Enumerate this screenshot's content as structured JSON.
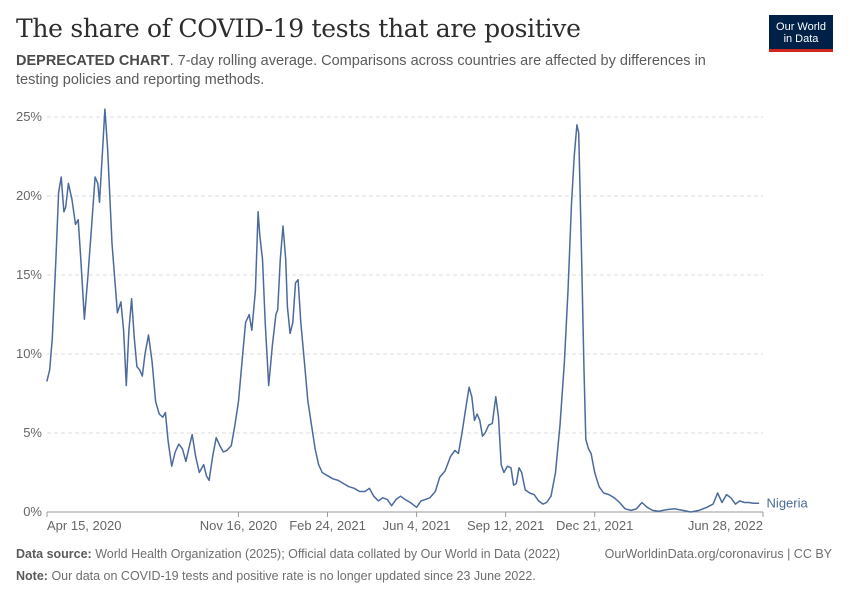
{
  "header": {
    "title": "The share of COVID-19 tests that are positive",
    "subtitle_bold": "DEPRECATED CHART",
    "subtitle_rest": ". 7-day rolling average. Comparisons across countries are affected by differences in testing policies and reporting methods.",
    "logo_line1": "Our World",
    "logo_line2": "in Data"
  },
  "footer": {
    "source_label": "Data source:",
    "source_text": "World Health Organization (2025); Official data collated by Our World in Data (2022)",
    "link_text": "OurWorldinData.org/coronavirus | CC BY",
    "note_label": "Note:",
    "note_text": "Our data on COVID-19 tests and positive rate is no longer updated since 23 June 2022."
  },
  "colors": {
    "series": "#4c6a9c",
    "grid": "#dddddd",
    "axis": "#999999",
    "text": "#666666"
  },
  "chart_data": {
    "type": "line",
    "title": "The share of COVID-19 tests that are positive",
    "xlabel": "",
    "ylabel": "",
    "x_range": [
      "2020-04-15",
      "2022-06-28"
    ],
    "ylim": [
      0,
      25
    ],
    "y_ticks": [
      0,
      5,
      10,
      15,
      20,
      25
    ],
    "y_tick_labels": [
      "0%",
      "5%",
      "10%",
      "15%",
      "20%",
      "25%"
    ],
    "x_ticks": [
      "2020-04-15",
      "2020-11-16",
      "2021-02-24",
      "2021-06-04",
      "2021-09-12",
      "2021-12-21",
      "2022-06-28"
    ],
    "x_tick_labels": [
      "Apr 15, 2020",
      "Nov 16, 2020",
      "Feb 24, 2021",
      "Jun 4, 2021",
      "Sep 12, 2021",
      "Dec 21, 2021",
      "Jun 28, 2022"
    ],
    "grid": true,
    "legend": "end-of-line label",
    "series": [
      {
        "name": "Nigeria",
        "points": [
          [
            "2020-04-15",
            8.3
          ],
          [
            "2020-04-18",
            9.0
          ],
          [
            "2020-04-21",
            11.0
          ],
          [
            "2020-04-25",
            16.0
          ],
          [
            "2020-04-28",
            20.2
          ],
          [
            "2020-05-01",
            21.2
          ],
          [
            "2020-05-04",
            19.0
          ],
          [
            "2020-05-06",
            19.3
          ],
          [
            "2020-05-09",
            20.8
          ],
          [
            "2020-05-13",
            19.8
          ],
          [
            "2020-05-17",
            18.2
          ],
          [
            "2020-05-20",
            18.5
          ],
          [
            "2020-05-23",
            16.0
          ],
          [
            "2020-05-27",
            12.2
          ],
          [
            "2020-05-31",
            15.0
          ],
          [
            "2020-06-04",
            18.0
          ],
          [
            "2020-06-08",
            21.2
          ],
          [
            "2020-06-11",
            20.8
          ],
          [
            "2020-06-13",
            19.6
          ],
          [
            "2020-06-16",
            22.5
          ],
          [
            "2020-06-19",
            25.5
          ],
          [
            "2020-06-22",
            23.0
          ],
          [
            "2020-06-27",
            17.0
          ],
          [
            "2020-07-03",
            12.6
          ],
          [
            "2020-07-07",
            13.3
          ],
          [
            "2020-07-10",
            11.5
          ],
          [
            "2020-07-13",
            8.0
          ],
          [
            "2020-07-16",
            11.5
          ],
          [
            "2020-07-19",
            13.5
          ],
          [
            "2020-07-22",
            11.0
          ],
          [
            "2020-07-25",
            9.2
          ],
          [
            "2020-07-28",
            9.0
          ],
          [
            "2020-07-31",
            8.6
          ],
          [
            "2020-08-03",
            10.0
          ],
          [
            "2020-08-07",
            11.2
          ],
          [
            "2020-08-11",
            9.5
          ],
          [
            "2020-08-15",
            7.0
          ],
          [
            "2020-08-19",
            6.2
          ],
          [
            "2020-08-23",
            6.0
          ],
          [
            "2020-08-26",
            6.3
          ],
          [
            "2020-08-29",
            4.5
          ],
          [
            "2020-09-02",
            2.9
          ],
          [
            "2020-09-06",
            3.8
          ],
          [
            "2020-09-10",
            4.3
          ],
          [
            "2020-09-14",
            4.0
          ],
          [
            "2020-09-18",
            3.2
          ],
          [
            "2020-09-22",
            4.2
          ],
          [
            "2020-09-25",
            4.9
          ],
          [
            "2020-09-29",
            3.5
          ],
          [
            "2020-10-03",
            2.5
          ],
          [
            "2020-10-08",
            3.0
          ],
          [
            "2020-10-11",
            2.3
          ],
          [
            "2020-10-14",
            2.0
          ],
          [
            "2020-10-18",
            3.5
          ],
          [
            "2020-10-22",
            4.7
          ],
          [
            "2020-10-26",
            4.2
          ],
          [
            "2020-10-30",
            3.8
          ],
          [
            "2020-11-03",
            3.9
          ],
          [
            "2020-11-08",
            4.2
          ],
          [
            "2020-11-12",
            5.5
          ],
          [
            "2020-11-16",
            7.0
          ],
          [
            "2020-11-20",
            9.5
          ],
          [
            "2020-11-24",
            12.0
          ],
          [
            "2020-11-28",
            12.5
          ],
          [
            "2020-12-01",
            11.5
          ],
          [
            "2020-12-05",
            14.0
          ],
          [
            "2020-12-08",
            19.0
          ],
          [
            "2020-12-10",
            17.5
          ],
          [
            "2020-12-13",
            16.0
          ],
          [
            "2020-12-16",
            12.0
          ],
          [
            "2020-12-20",
            8.0
          ],
          [
            "2020-12-24",
            10.5
          ],
          [
            "2020-12-28",
            12.5
          ],
          [
            "2020-12-30",
            12.8
          ],
          [
            "2021-01-02",
            16.0
          ],
          [
            "2021-01-05",
            18.1
          ],
          [
            "2021-01-08",
            16.0
          ],
          [
            "2021-01-10",
            13.0
          ],
          [
            "2021-01-13",
            11.3
          ],
          [
            "2021-01-16",
            12.0
          ],
          [
            "2021-01-19",
            14.5
          ],
          [
            "2021-01-22",
            14.7
          ],
          [
            "2021-01-25",
            12.0
          ],
          [
            "2021-01-29",
            9.5
          ],
          [
            "2021-02-02",
            7.0
          ],
          [
            "2021-02-06",
            5.5
          ],
          [
            "2021-02-10",
            4.0
          ],
          [
            "2021-02-14",
            3.0
          ],
          [
            "2021-02-18",
            2.5
          ],
          [
            "2021-02-24",
            2.3
          ],
          [
            "2021-03-02",
            2.1
          ],
          [
            "2021-03-08",
            2.0
          ],
          [
            "2021-03-14",
            1.8
          ],
          [
            "2021-03-20",
            1.6
          ],
          [
            "2021-03-26",
            1.5
          ],
          [
            "2021-04-01",
            1.3
          ],
          [
            "2021-04-07",
            1.3
          ],
          [
            "2021-04-12",
            1.5
          ],
          [
            "2021-04-17",
            1.0
          ],
          [
            "2021-04-22",
            0.7
          ],
          [
            "2021-04-27",
            0.9
          ],
          [
            "2021-05-02",
            0.8
          ],
          [
            "2021-05-07",
            0.4
          ],
          [
            "2021-05-12",
            0.8
          ],
          [
            "2021-05-17",
            1.0
          ],
          [
            "2021-05-22",
            0.8
          ],
          [
            "2021-05-28",
            0.6
          ],
          [
            "2021-06-04",
            0.3
          ],
          [
            "2021-06-09",
            0.7
          ],
          [
            "2021-06-14",
            0.8
          ],
          [
            "2021-06-19",
            0.9
          ],
          [
            "2021-06-25",
            1.3
          ],
          [
            "2021-06-30",
            2.2
          ],
          [
            "2021-07-06",
            2.6
          ],
          [
            "2021-07-12",
            3.5
          ],
          [
            "2021-07-17",
            3.9
          ],
          [
            "2021-07-21",
            3.7
          ],
          [
            "2021-07-25",
            5.0
          ],
          [
            "2021-07-29",
            6.5
          ],
          [
            "2021-08-02",
            7.9
          ],
          [
            "2021-08-05",
            7.3
          ],
          [
            "2021-08-08",
            5.8
          ],
          [
            "2021-08-11",
            6.2
          ],
          [
            "2021-08-14",
            5.8
          ],
          [
            "2021-08-17",
            4.8
          ],
          [
            "2021-08-20",
            5.0
          ],
          [
            "2021-08-24",
            5.5
          ],
          [
            "2021-08-28",
            5.6
          ],
          [
            "2021-09-01",
            7.3
          ],
          [
            "2021-09-04",
            6.0
          ],
          [
            "2021-09-07",
            3.0
          ],
          [
            "2021-09-10",
            2.5
          ],
          [
            "2021-09-14",
            2.9
          ],
          [
            "2021-09-18",
            2.8
          ],
          [
            "2021-09-21",
            1.7
          ],
          [
            "2021-09-24",
            1.8
          ],
          [
            "2021-09-27",
            2.8
          ],
          [
            "2021-09-30",
            2.5
          ],
          [
            "2021-10-04",
            1.4
          ],
          [
            "2021-10-09",
            1.2
          ],
          [
            "2021-10-14",
            1.1
          ],
          [
            "2021-10-19",
            0.7
          ],
          [
            "2021-10-24",
            0.5
          ],
          [
            "2021-10-28",
            0.6
          ],
          [
            "2021-11-02",
            1.0
          ],
          [
            "2021-11-07",
            2.5
          ],
          [
            "2021-11-12",
            5.5
          ],
          [
            "2021-11-17",
            9.5
          ],
          [
            "2021-11-21",
            14.0
          ],
          [
            "2021-11-25",
            19.5
          ],
          [
            "2021-11-28",
            22.5
          ],
          [
            "2021-12-01",
            24.5
          ],
          [
            "2021-12-03",
            24.0
          ],
          [
            "2021-12-06",
            17.0
          ],
          [
            "2021-12-09",
            9.0
          ],
          [
            "2021-12-11",
            4.6
          ],
          [
            "2021-12-14",
            4.0
          ],
          [
            "2021-12-17",
            3.7
          ],
          [
            "2021-12-21",
            2.5
          ],
          [
            "2021-12-26",
            1.6
          ],
          [
            "2021-12-31",
            1.2
          ],
          [
            "2022-01-06",
            1.1
          ],
          [
            "2022-01-12",
            0.9
          ],
          [
            "2022-01-18",
            0.6
          ],
          [
            "2022-01-24",
            0.2
          ],
          [
            "2022-01-31",
            0.1
          ],
          [
            "2022-02-06",
            0.2
          ],
          [
            "2022-02-12",
            0.6
          ],
          [
            "2022-02-18",
            0.3
          ],
          [
            "2022-02-24",
            0.1
          ],
          [
            "2022-03-03",
            0.05
          ],
          [
            "2022-03-12",
            0.15
          ],
          [
            "2022-03-21",
            0.2
          ],
          [
            "2022-03-30",
            0.1
          ],
          [
            "2022-04-08",
            0.0
          ],
          [
            "2022-04-17",
            0.1
          ],
          [
            "2022-04-26",
            0.3
          ],
          [
            "2022-05-03",
            0.5
          ],
          [
            "2022-05-08",
            1.2
          ],
          [
            "2022-05-13",
            0.6
          ],
          [
            "2022-05-18",
            1.1
          ],
          [
            "2022-05-23",
            0.9
          ],
          [
            "2022-05-28",
            0.5
          ],
          [
            "2022-06-02",
            0.7
          ],
          [
            "2022-06-07",
            0.6
          ],
          [
            "2022-06-12",
            0.6
          ],
          [
            "2022-06-17",
            0.55
          ],
          [
            "2022-06-23",
            0.55
          ]
        ]
      }
    ]
  }
}
